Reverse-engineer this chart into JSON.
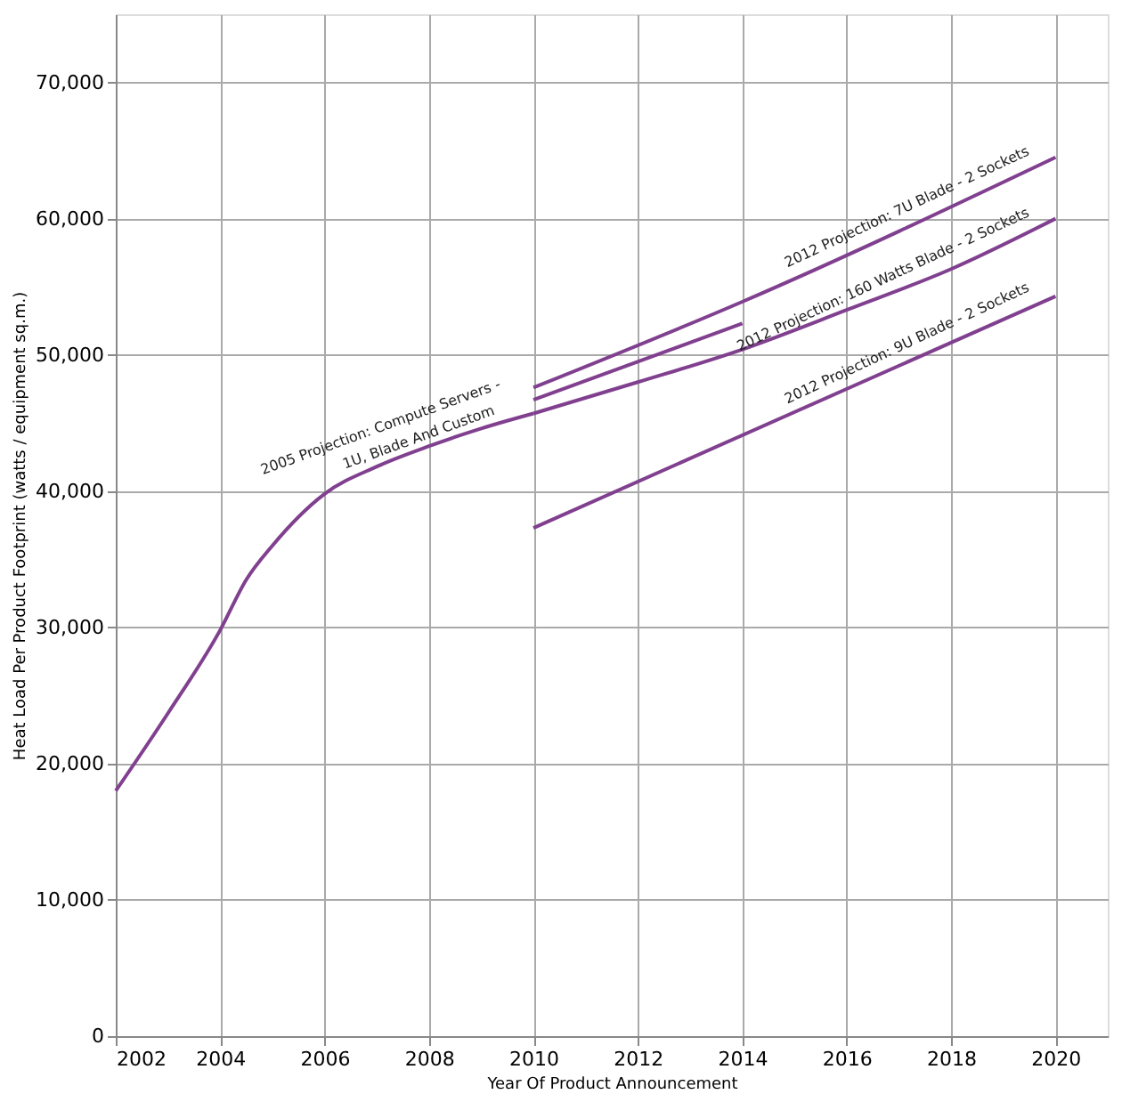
{
  "chart_data": {
    "type": "line",
    "xlabel": "Year Of Product Announcement",
    "ylabel": "Heat Load Per Product Footprint (watts / equipment sq.m.)",
    "xlim": [
      2002,
      2021
    ],
    "xticks": [
      2002,
      2004,
      2006,
      2008,
      2010,
      2012,
      2014,
      2016,
      2018,
      2020
    ],
    "ylim": [
      0,
      75000
    ],
    "yticks": [
      0,
      {
        "value": 10000,
        "label": "10,000"
      },
      {
        "value": 20000,
        "label": "20,000"
      },
      {
        "value": 30000,
        "label": "30,000"
      },
      {
        "value": 40000,
        "label": "40,000"
      },
      {
        "value": 50000,
        "label": "50,000"
      },
      {
        "value": 60000,
        "label": "60,000"
      },
      {
        "value": 70000,
        "label": "70,000"
      }
    ],
    "grid": true,
    "marker": "none",
    "line_style": "solid",
    "series": [
      {
        "color": "#80408f",
        "x": [
          2002,
          2003,
          2004,
          2004.5,
          2005,
          2006,
          2007,
          2008,
          2009,
          2010
        ],
        "values": [
          18000,
          23700,
          29800,
          33500,
          36000,
          39800,
          41800,
          43300,
          44600,
          45700
        ]
      },
      {
        "color": "#80408f",
        "x": [
          2010,
          2014,
          2020
        ],
        "values": [
          47600,
          53900,
          64500
        ]
      },
      {
        "color": "#80408f",
        "x": [
          2010,
          2014
        ],
        "values": [
          46700,
          52300
        ]
      },
      {
        "color": "#80408f",
        "x": [
          2010,
          2012,
          2014,
          2016,
          2018,
          2020
        ],
        "values": [
          45700,
          48000,
          50400,
          53300,
          56300,
          60000
        ]
      },
      {
        "color": "#80408f",
        "x": [
          2010,
          2020
        ],
        "values": [
          37300,
          54300
        ]
      }
    ],
    "annotations": [
      {
        "text": "2005 Projection: Compute Servers -",
        "x": 2007.3,
        "y": 42300
      },
      {
        "text": "1U, Blade And Custom",
        "x": 2007.9,
        "y": 42900
      },
      {
        "text": "2012 Projection: 7U Blade - 2 Sockets",
        "x": 2019.6,
        "y": 64000
      },
      {
        "text": "2012 Projection: 160 Watts Blade - 2 Sockets",
        "x": 2019.6,
        "y": 59500
      },
      {
        "text": "2012 Projection: 9U Blade - 2 Sockets",
        "x": 2019.6,
        "y": 54000
      }
    ]
  }
}
